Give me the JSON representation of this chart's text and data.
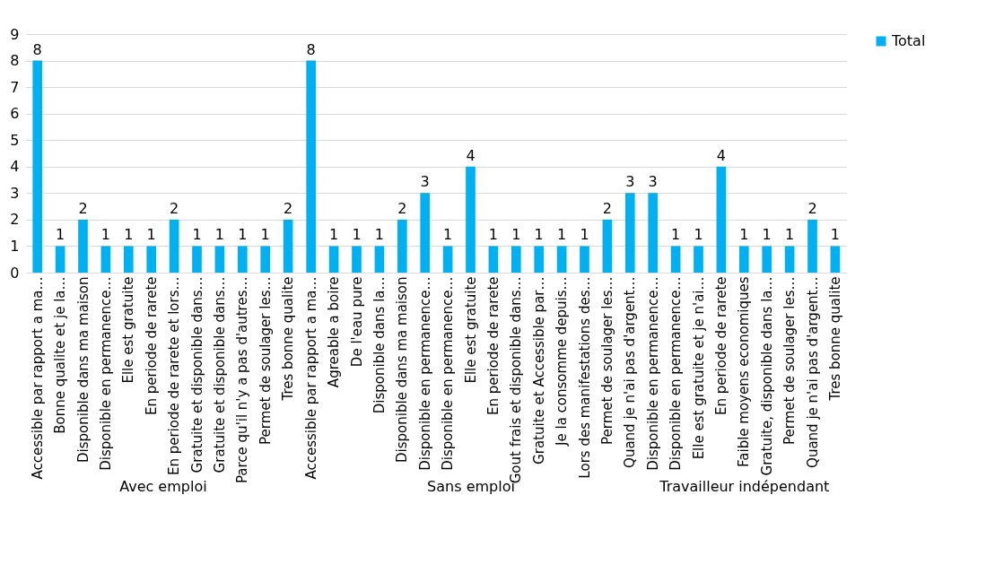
{
  "chart_data": [
    {
      "type": "bar",
      "xlabel": "Avec emploi",
      "categories": [
        "Accessible par rapport a ma…",
        "Bonne qualite et je la…",
        "Disponible dans ma maison",
        "Disponible en permanence…",
        "Elle est gratuite",
        "En periode de rarete",
        "En periode de rarete et lors…",
        "Gratuite et disponible dans…",
        "Gratuite et disponible dans…",
        "Parce qu'il n'y a pas d'autres…",
        "Permet de soulager les…",
        "Tres bonne qualite"
      ],
      "series": [
        {
          "color": "#00b0f0",
          "values": [
            8,
            1,
            2,
            1,
            1,
            1,
            2,
            1,
            1,
            1,
            1,
            2
          ]
        }
      ],
      "ylim": [
        0,
        9
      ],
      "yticks": [
        0,
        1,
        2,
        3,
        4,
        5,
        6,
        7,
        8,
        9
      ],
      "grid": "y",
      "data_labels": true
    },
    {
      "type": "bar",
      "xlabel": "Sans emploi",
      "categories": [
        "Accessible par rapport a ma…",
        "Agreable a boire",
        "De l'eau pure",
        "Disponible dans la…",
        "Disponible dans ma maison",
        "Disponible en permanence…",
        "Disponible en permanence…",
        "Elle est gratuite",
        "En periode de rarete",
        "Gout frais et disponible dans…",
        "Gratuite et Accessible par…",
        "Je la consomme depuis…",
        "Lors des manifestations des…",
        "Permet de soulager les…",
        "Quand je n'ai pas d'argent…"
      ],
      "series": [
        {
          "color": "#00b0f0",
          "values": [
            8,
            1,
            1,
            1,
            2,
            3,
            1,
            4,
            1,
            1,
            1,
            1,
            1,
            2,
            3
          ]
        }
      ],
      "ylim": [
        0,
        9
      ],
      "yticks": [
        0,
        1,
        2,
        3,
        4,
        5,
        6,
        7,
        8,
        9
      ],
      "grid": "y",
      "data_labels": true,
      "tick_labels": "x"
    },
    {
      "type": "bar",
      "xlabel": "Travailleur indépendant",
      "categories": [
        "Disponible en permanence…",
        "Disponible en permanence…",
        "Elle est gratuite et je n'ai…",
        "En periode de rarete",
        "Faible moyens economiques",
        "Gratuite, disponible dans la…",
        "Permet de soulager les…",
        "Quand je n'ai pas d'argent…",
        "Tres bonne qualite"
      ],
      "series": [
        {
          "name": "Total",
          "color": "#00b0f0",
          "values": [
            3,
            1,
            1,
            4,
            1,
            1,
            1,
            2,
            1
          ]
        }
      ],
      "ylim": [
        0,
        9
      ],
      "yticks": [
        0,
        1,
        2,
        3,
        4,
        5,
        6,
        7,
        8,
        9
      ],
      "grid": "y",
      "data_labels": true,
      "legend": "right",
      "tick_labels": "x"
    }
  ]
}
